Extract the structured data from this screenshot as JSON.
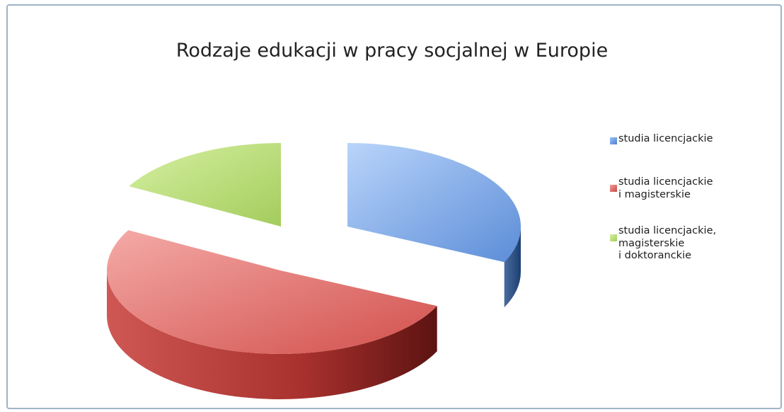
{
  "chart_data": {
    "type": "pie",
    "style": "3d-exploded",
    "title": "Rodzaje edukacji w pracy socjalnej w Europie",
    "series": [
      {
        "label": "studia licencjackie",
        "value": 32,
        "color": "#8cb4ee"
      },
      {
        "label": "studia licencjackie\ni magisterskie",
        "value": 51,
        "color": "#e07b78"
      },
      {
        "label": "studia licencjackie,\nmagisterskie\ni doktoranckie",
        "value": 17,
        "color": "#c4e08a"
      }
    ],
    "legend_position": "right"
  }
}
